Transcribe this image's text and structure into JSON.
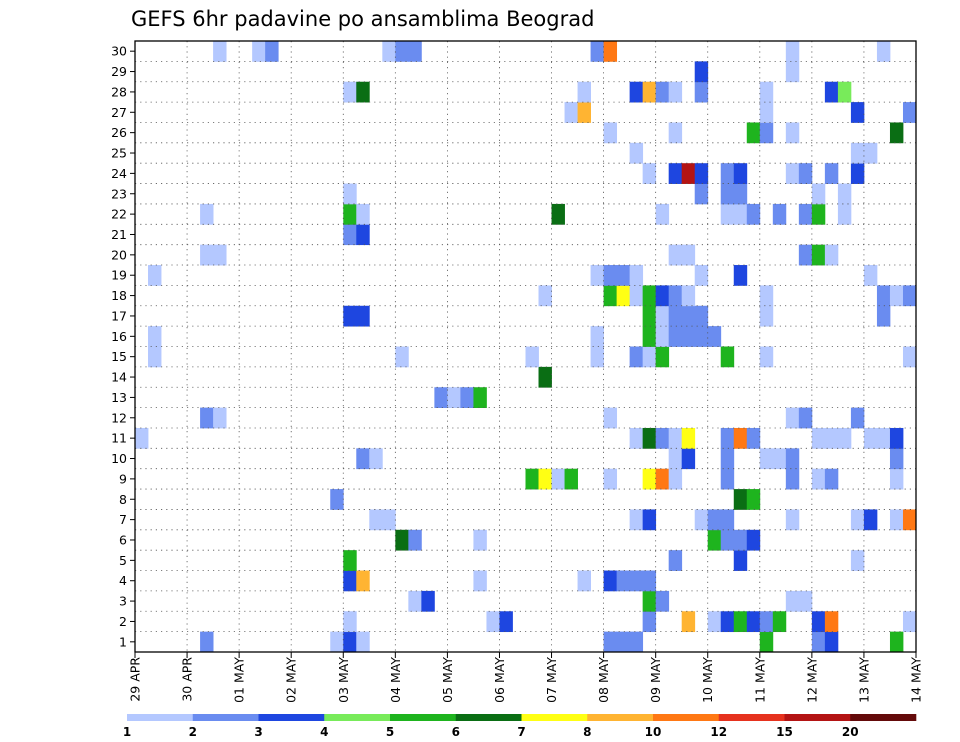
{
  "chart_data": {
    "type": "heatmap",
    "title": "GEFS 6hr padavine po ansamblima Beograd",
    "xlabel": "",
    "ylabel": "",
    "x_tick_labels": [
      "29 APR",
      "30 APR",
      "01 MAY",
      "02 MAY",
      "03 MAY",
      "04 MAY",
      "05 MAY",
      "06 MAY",
      "07 MAY",
      "08 MAY",
      "09 MAY",
      "10 MAY",
      "11 MAY",
      "12 MAY",
      "13 MAY",
      "14 MAY"
    ],
    "y_tick_labels": [
      "1",
      "2",
      "3",
      "4",
      "5",
      "6",
      "7",
      "8",
      "9",
      "10",
      "11",
      "12",
      "13",
      "14",
      "15",
      "16",
      "17",
      "18",
      "19",
      "20",
      "21",
      "22",
      "23",
      "24",
      "25",
      "26",
      "27",
      "28",
      "29",
      "30"
    ],
    "ylim": [
      0,
      30
    ],
    "time_steps": 60,
    "grid": true,
    "colorbar": {
      "labels": [
        "1",
        "2",
        "3",
        "4",
        "5",
        "6",
        "7",
        "8",
        "10",
        "12",
        "15",
        "20"
      ],
      "colors": [
        "#b4c8ff",
        "#6a8cf0",
        "#1e46e0",
        "#78eb5a",
        "#1eb41e",
        "#0a6e14",
        "#ffff14",
        "#ffb432",
        "#ff7814",
        "#e6321e",
        "#b41414",
        "#640a0a"
      ]
    },
    "cells": [
      [
        1,
        6,
        2
      ],
      [
        1,
        16,
        1
      ],
      [
        1,
        17,
        3
      ],
      [
        1,
        18,
        1
      ],
      [
        1,
        37,
        2
      ],
      [
        1,
        38,
        2
      ],
      [
        1,
        39,
        2
      ],
      [
        1,
        49,
        5
      ],
      [
        1,
        53,
        2
      ],
      [
        1,
        54,
        3
      ],
      [
        1,
        59,
        5
      ],
      [
        2,
        17,
        1
      ],
      [
        2,
        28,
        1
      ],
      [
        2,
        29,
        3
      ],
      [
        2,
        40,
        2
      ],
      [
        2,
        43,
        8
      ],
      [
        2,
        45,
        1
      ],
      [
        2,
        46,
        3
      ],
      [
        2,
        47,
        5
      ],
      [
        2,
        48,
        3
      ],
      [
        2,
        49,
        2
      ],
      [
        2,
        50,
        5
      ],
      [
        2,
        53,
        3
      ],
      [
        2,
        54,
        9
      ],
      [
        2,
        60,
        1
      ],
      [
        3,
        22,
        1
      ],
      [
        3,
        23,
        3
      ],
      [
        3,
        40,
        5
      ],
      [
        3,
        41,
        2
      ],
      [
        3,
        51,
        1
      ],
      [
        3,
        52,
        1
      ],
      [
        4,
        17,
        3
      ],
      [
        4,
        18,
        8
      ],
      [
        4,
        27,
        1
      ],
      [
        4,
        35,
        1
      ],
      [
        4,
        37,
        3
      ],
      [
        4,
        38,
        2
      ],
      [
        4,
        39,
        2
      ],
      [
        4,
        40,
        2
      ],
      [
        5,
        17,
        5
      ],
      [
        5,
        42,
        2
      ],
      [
        5,
        47,
        3
      ],
      [
        5,
        56,
        1
      ],
      [
        6,
        21,
        6
      ],
      [
        6,
        22,
        2
      ],
      [
        6,
        27,
        1
      ],
      [
        6,
        45,
        5
      ],
      [
        6,
        46,
        2
      ],
      [
        6,
        47,
        2
      ],
      [
        6,
        48,
        3
      ],
      [
        7,
        19,
        1
      ],
      [
        7,
        20,
        1
      ],
      [
        7,
        39,
        1
      ],
      [
        7,
        40,
        3
      ],
      [
        7,
        44,
        1
      ],
      [
        7,
        45,
        2
      ],
      [
        7,
        46,
        2
      ],
      [
        7,
        51,
        1
      ],
      [
        7,
        56,
        1
      ],
      [
        7,
        57,
        3
      ],
      [
        7,
        59,
        1
      ],
      [
        7,
        60,
        9
      ],
      [
        8,
        16,
        2
      ],
      [
        8,
        47,
        6
      ],
      [
        8,
        48,
        5
      ],
      [
        9,
        31,
        5
      ],
      [
        9,
        32,
        7
      ],
      [
        9,
        33,
        1
      ],
      [
        9,
        34,
        5
      ],
      [
        9,
        37,
        1
      ],
      [
        9,
        40,
        7
      ],
      [
        9,
        41,
        9
      ],
      [
        9,
        42,
        1
      ],
      [
        9,
        46,
        2
      ],
      [
        9,
        51,
        2
      ],
      [
        9,
        53,
        1
      ],
      [
        9,
        54,
        2
      ],
      [
        9,
        59,
        1
      ],
      [
        10,
        18,
        2
      ],
      [
        10,
        19,
        1
      ],
      [
        10,
        42,
        1
      ],
      [
        10,
        43,
        3
      ],
      [
        10,
        46,
        2
      ],
      [
        10,
        49,
        1
      ],
      [
        10,
        50,
        1
      ],
      [
        10,
        51,
        2
      ],
      [
        10,
        59,
        2
      ],
      [
        11,
        1,
        1
      ],
      [
        11,
        39,
        1
      ],
      [
        11,
        40,
        6
      ],
      [
        11,
        41,
        2
      ],
      [
        11,
        42,
        1
      ],
      [
        11,
        43,
        7
      ],
      [
        11,
        46,
        2
      ],
      [
        11,
        47,
        9
      ],
      [
        11,
        48,
        2
      ],
      [
        11,
        53,
        1
      ],
      [
        11,
        54,
        1
      ],
      [
        11,
        55,
        1
      ],
      [
        11,
        57,
        1
      ],
      [
        11,
        58,
        1
      ],
      [
        11,
        59,
        3
      ],
      [
        12,
        6,
        2
      ],
      [
        12,
        7,
        1
      ],
      [
        12,
        37,
        1
      ],
      [
        12,
        51,
        1
      ],
      [
        12,
        52,
        2
      ],
      [
        12,
        56,
        2
      ],
      [
        13,
        24,
        2
      ],
      [
        13,
        25,
        1
      ],
      [
        13,
        26,
        2
      ],
      [
        13,
        27,
        5
      ],
      [
        14,
        32,
        6
      ],
      [
        15,
        2,
        1
      ],
      [
        15,
        21,
        1
      ],
      [
        15,
        31,
        1
      ],
      [
        15,
        36,
        1
      ],
      [
        15,
        39,
        2
      ],
      [
        15,
        40,
        1
      ],
      [
        15,
        41,
        5
      ],
      [
        15,
        46,
        5
      ],
      [
        15,
        49,
        1
      ],
      [
        15,
        60,
        1
      ],
      [
        16,
        2,
        1
      ],
      [
        16,
        36,
        1
      ],
      [
        16,
        40,
        5
      ],
      [
        16,
        41,
        1
      ],
      [
        16,
        42,
        2
      ],
      [
        16,
        43,
        2
      ],
      [
        16,
        44,
        2
      ],
      [
        16,
        45,
        2
      ],
      [
        17,
        17,
        3
      ],
      [
        17,
        18,
        3
      ],
      [
        17,
        40,
        5
      ],
      [
        17,
        41,
        1
      ],
      [
        17,
        42,
        2
      ],
      [
        17,
        43,
        2
      ],
      [
        17,
        44,
        2
      ],
      [
        17,
        49,
        1
      ],
      [
        17,
        58,
        2
      ],
      [
        18,
        32,
        1
      ],
      [
        18,
        37,
        5
      ],
      [
        18,
        38,
        7
      ],
      [
        18,
        39,
        1
      ],
      [
        18,
        40,
        5
      ],
      [
        18,
        41,
        3
      ],
      [
        18,
        42,
        2
      ],
      [
        18,
        43,
        1
      ],
      [
        18,
        49,
        1
      ],
      [
        18,
        58,
        2
      ],
      [
        18,
        59,
        1
      ],
      [
        18,
        60,
        2
      ],
      [
        19,
        2,
        1
      ],
      [
        19,
        36,
        1
      ],
      [
        19,
        37,
        2
      ],
      [
        19,
        38,
        2
      ],
      [
        19,
        39,
        1
      ],
      [
        19,
        44,
        1
      ],
      [
        19,
        47,
        3
      ],
      [
        19,
        57,
        1
      ],
      [
        20,
        6,
        1
      ],
      [
        20,
        7,
        1
      ],
      [
        20,
        42,
        1
      ],
      [
        20,
        43,
        1
      ],
      [
        20,
        52,
        2
      ],
      [
        20,
        53,
        5
      ],
      [
        20,
        54,
        1
      ],
      [
        21,
        17,
        2
      ],
      [
        21,
        18,
        3
      ],
      [
        22,
        6,
        1
      ],
      [
        22,
        17,
        5
      ],
      [
        22,
        18,
        1
      ],
      [
        22,
        33,
        6
      ],
      [
        22,
        41,
        1
      ],
      [
        22,
        46,
        1
      ],
      [
        22,
        47,
        1
      ],
      [
        22,
        48,
        2
      ],
      [
        22,
        50,
        2
      ],
      [
        22,
        52,
        2
      ],
      [
        22,
        53,
        5
      ],
      [
        22,
        55,
        1
      ],
      [
        23,
        17,
        1
      ],
      [
        23,
        44,
        2
      ],
      [
        23,
        46,
        2
      ],
      [
        23,
        47,
        2
      ],
      [
        23,
        53,
        1
      ],
      [
        23,
        55,
        1
      ],
      [
        24,
        40,
        1
      ],
      [
        24,
        42,
        3
      ],
      [
        24,
        43,
        11
      ],
      [
        24,
        44,
        3
      ],
      [
        24,
        46,
        2
      ],
      [
        24,
        47,
        3
      ],
      [
        24,
        51,
        1
      ],
      [
        24,
        52,
        2
      ],
      [
        24,
        54,
        2
      ],
      [
        24,
        56,
        3
      ],
      [
        25,
        39,
        1
      ],
      [
        25,
        56,
        1
      ],
      [
        25,
        57,
        1
      ],
      [
        26,
        37,
        1
      ],
      [
        26,
        42,
        1
      ],
      [
        26,
        48,
        5
      ],
      [
        26,
        49,
        2
      ],
      [
        26,
        51,
        1
      ],
      [
        26,
        59,
        6
      ],
      [
        27,
        34,
        1
      ],
      [
        27,
        35,
        8
      ],
      [
        27,
        49,
        1
      ],
      [
        27,
        56,
        3
      ],
      [
        27,
        60,
        2
      ],
      [
        28,
        17,
        1
      ],
      [
        28,
        18,
        6
      ],
      [
        28,
        35,
        1
      ],
      [
        28,
        39,
        3
      ],
      [
        28,
        40,
        8
      ],
      [
        28,
        41,
        2
      ],
      [
        28,
        42,
        1
      ],
      [
        28,
        44,
        2
      ],
      [
        28,
        49,
        1
      ],
      [
        28,
        54,
        3
      ],
      [
        28,
        55,
        4
      ],
      [
        29,
        44,
        3
      ],
      [
        29,
        51,
        1
      ],
      [
        30,
        7,
        1
      ],
      [
        30,
        10,
        1
      ],
      [
        30,
        11,
        2
      ],
      [
        30,
        20,
        1
      ],
      [
        30,
        21,
        2
      ],
      [
        30,
        22,
        2
      ],
      [
        30,
        36,
        2
      ],
      [
        30,
        37,
        9
      ],
      [
        30,
        51,
        1
      ],
      [
        30,
        58,
        1
      ]
    ]
  }
}
